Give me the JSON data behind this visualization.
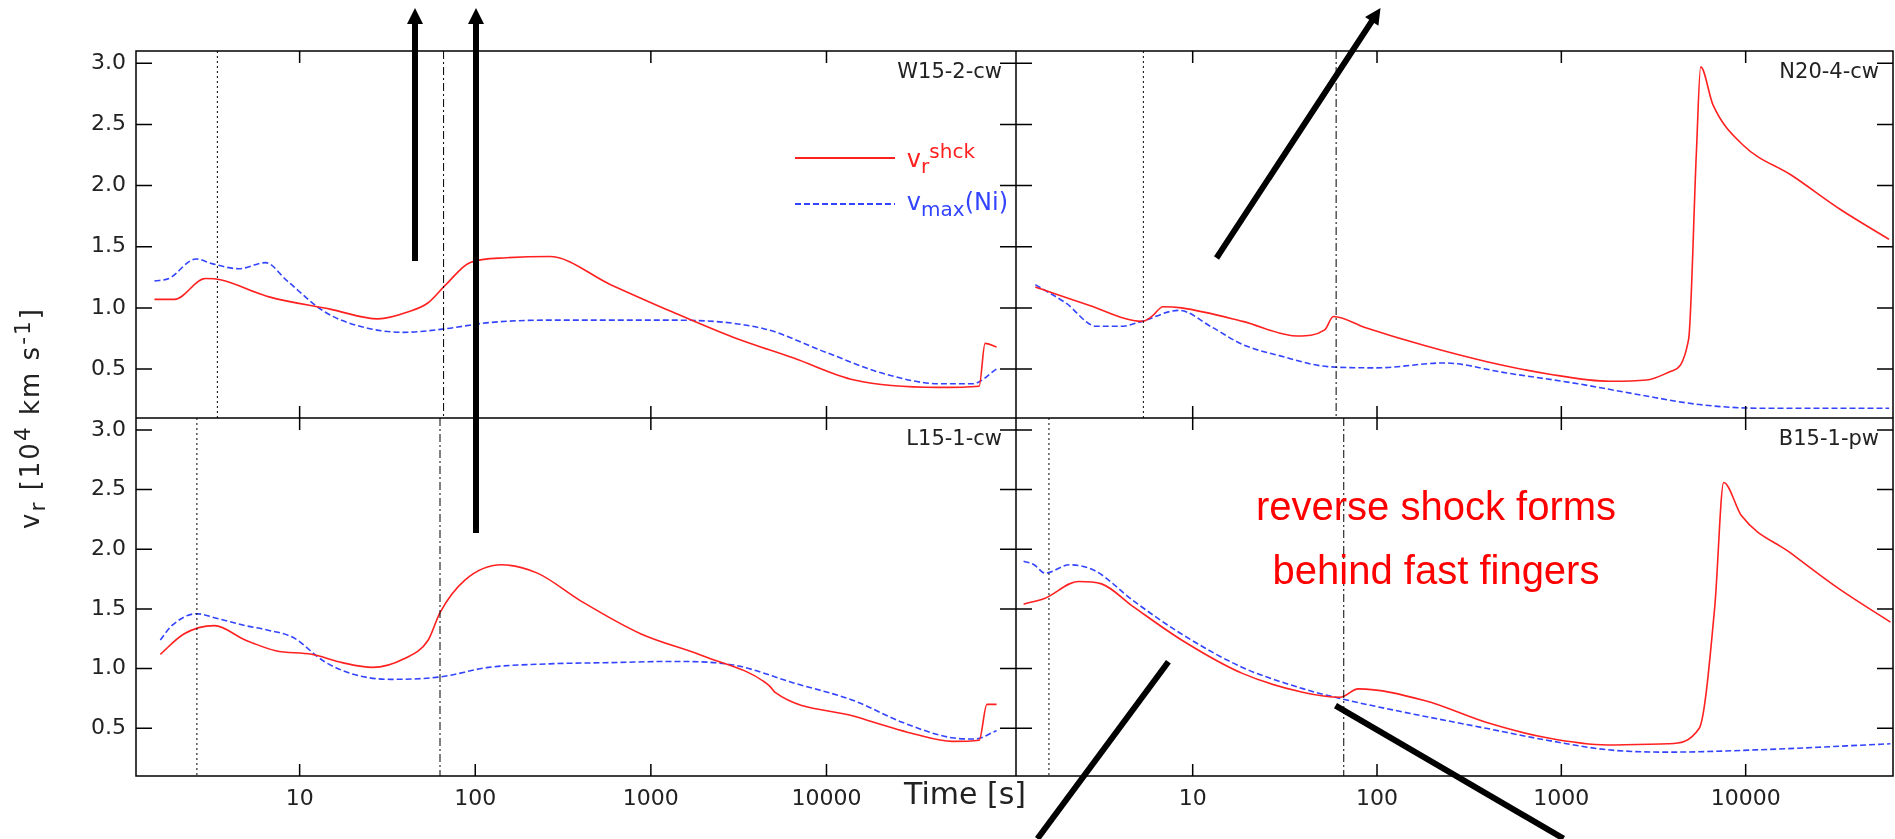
{
  "chart_data": [
    {
      "type": "line",
      "title": "W15-2-cw",
      "log": "x",
      "legend": "top right",
      "tick_labels": "y",
      "marker": "none",
      "xlim": [
        1.17,
        120000
      ],
      "xticks": [
        10,
        100,
        1000,
        10000
      ],
      "ylim": [
        0.1,
        3.1
      ],
      "yticks": [
        0.5,
        {
          "value": 1,
          "label": "1.0"
        },
        1.5,
        {
          "value": 2,
          "label": "2.0"
        },
        2.5,
        {
          "value": 3,
          "label": "3.0"
        }
      ],
      "ref_lines": [
        {
          "axis": "x",
          "value": 3.4,
          "line_style": "dotted"
        },
        {
          "axis": "x",
          "value": 66,
          "line_style": "dashdot"
        }
      ],
      "series": [
        {
          "name": "v$_{r}$$^{shck}$",
          "color": "#ff2020",
          "line_style": "solid",
          "x": [
            1.49,
            1.94,
            2.9,
            3.54,
            6.7,
            14.9,
            28,
            42,
            53.7,
            68,
            93,
            151,
            264,
            590,
            1310,
            2940,
            6500,
            14400,
            43000,
            74000,
            80000,
            93000
          ],
          "values": [
            1.07,
            1.07,
            1.24,
            1.23,
            1.09,
            0.99,
            0.91,
            0.97,
            1.04,
            1.19,
            1.37,
            1.41,
            1.42,
            1.19,
            0.97,
            0.76,
            0.59,
            0.41,
            0.35,
            0.36,
            0.71,
            0.68
          ]
        },
        {
          "name": "v$_{max}$(Ni)",
          "color": "#3344ff",
          "line_style": "dashed",
          "x": [
            1.49,
            1.8,
            2.57,
            3.2,
            4.5,
            6.4,
            8.5,
            13.8,
            22,
            39,
            68,
            120,
            264,
            590,
            1310,
            4400,
            9800,
            21500,
            44000,
            68000,
            93000
          ],
          "values": [
            1.22,
            1.24,
            1.4,
            1.36,
            1.32,
            1.37,
            1.22,
            0.97,
            0.85,
            0.8,
            0.83,
            0.88,
            0.9,
            0.9,
            0.9,
            0.83,
            0.64,
            0.46,
            0.38,
            0.38,
            0.5
          ]
        }
      ]
    },
    {
      "type": "line",
      "title": "N20-4-cw",
      "log": "x",
      "tick_labels": false,
      "marker": "none",
      "xlim": [
        1.1,
        63000
      ],
      "xticks": [
        10,
        100,
        1000,
        10000
      ],
      "ylim": [
        0.1,
        3.1
      ],
      "yticks": [
        0.5,
        1,
        1.5,
        2,
        2.5,
        3
      ],
      "ref_lines": [
        {
          "axis": "x",
          "value": 5.4,
          "line_style": "dotted"
        },
        {
          "axis": "x",
          "value": 60,
          "line_style": "dashdot"
        }
      ],
      "series": [
        {
          "color": "#ff2020",
          "line_style": "solid",
          "x": [
            1.4,
            2.76,
            5.3,
            6.0,
            6.9,
            8.7,
            18.7,
            37,
            52,
            58,
            86,
            183,
            395,
            850,
            1830,
            2900,
            3900,
            4900,
            5400,
            5700,
            6650,
            9700,
            17900,
            33000,
            60000
          ],
          "values": [
            1.17,
            1.02,
            0.89,
            0.93,
            1.01,
            1.0,
            0.89,
            0.77,
            0.82,
            0.93,
            0.84,
            0.69,
            0.56,
            0.46,
            0.4,
            0.41,
            0.48,
            0.74,
            2.26,
            2.97,
            2.66,
            2.33,
            2.08,
            1.8,
            1.56
          ]
        },
        {
          "color": "#3344ff",
          "line_style": "dashed",
          "x": [
            1.4,
            2.05,
            3.0,
            4.1,
            5.3,
            8.4,
            12.8,
            18.7,
            29.5,
            54,
            100,
            230,
            495,
            1230,
            2650,
            5600,
            12000,
            60000
          ],
          "values": [
            1.19,
            1.04,
            0.85,
            0.85,
            0.89,
            0.98,
            0.84,
            0.7,
            0.61,
            0.52,
            0.51,
            0.55,
            0.47,
            0.38,
            0.29,
            0.21,
            0.18,
            0.18
          ]
        }
      ]
    },
    {
      "type": "line",
      "title": "L15-1-cw",
      "ylabel": "v$_{r}$ [10$^{4}$ km s$^{-1}$]",
      "log": "x",
      "marker": "none",
      "xlim": [
        1.17,
        120000
      ],
      "xticks": [
        10,
        100,
        1000,
        10000
      ],
      "ylim": [
        0.1,
        3.1
      ],
      "yticks": [
        0.5,
        {
          "value": 1,
          "label": "1.0"
        },
        1.5,
        {
          "value": 2,
          "label": "2.0"
        },
        2.5,
        {
          "value": 3,
          "label": "3.0"
        }
      ],
      "ref_lines": [
        {
          "axis": "x",
          "value": 2.6,
          "line_style": "dotted"
        },
        {
          "axis": "x",
          "value": 63,
          "line_style": "dashdot"
        }
      ],
      "series": [
        {
          "color": "#ff2020",
          "line_style": "solid",
          "x": [
            1.61,
            2.19,
            3.27,
            4.9,
            7.3,
            11.7,
            17.5,
            26,
            39,
            54,
            63,
            87,
            141,
            226,
            396,
            880,
            1950,
            4700,
            5100,
            14400,
            32000,
            52000,
            74000,
            82000,
            93000
          ],
          "values": [
            1.12,
            1.29,
            1.36,
            1.24,
            1.15,
            1.12,
            1.05,
            1.01,
            1.08,
            1.24,
            1.47,
            1.74,
            1.87,
            1.8,
            1.57,
            1.29,
            1.11,
            0.86,
            0.8,
            0.6,
            0.45,
            0.39,
            0.4,
            0.7,
            0.7
          ]
        },
        {
          "color": "#3344ff",
          "line_style": "dashed",
          "x": [
            1.61,
            1.87,
            2.58,
            3.4,
            4.9,
            6.7,
            9.2,
            13.8,
            20.5,
            33,
            63,
            119,
            265,
            590,
            1310,
            2950,
            6500,
            14400,
            27000,
            52000,
            70000,
            93000
          ],
          "values": [
            1.24,
            1.36,
            1.46,
            1.42,
            1.36,
            1.32,
            1.26,
            1.06,
            0.95,
            0.91,
            0.93,
            1.01,
            1.04,
            1.05,
            1.06,
            1.03,
            0.88,
            0.73,
            0.55,
            0.42,
            0.41,
            0.48
          ]
        }
      ]
    },
    {
      "type": "line",
      "title": "B15-1-pw",
      "xlabel": "Time [s]",
      "log": "x",
      "tick_labels": "x",
      "marker": "none",
      "xlim": [
        1.1,
        63000
      ],
      "xticks": [
        10,
        100,
        1000,
        10000
      ],
      "ylim": [
        0.1,
        3.1
      ],
      "yticks": [
        0.5,
        1,
        1.5,
        2,
        2.5,
        3
      ],
      "annotations": [
        "reverse shock forms behind fast fingers"
      ],
      "ref_lines": [
        {
          "axis": "x",
          "value": 1.66,
          "line_style": "dotted"
        },
        {
          "axis": "x",
          "value": 66,
          "line_style": "dashdot"
        }
      ],
      "series": [
        {
          "color": "#ff2020",
          "line_style": "solid",
          "x": [
            1.21,
            1.58,
            2.4,
            3.2,
            4.75,
            8.7,
            18.6,
            40,
            63,
            79,
            183,
            390,
            835,
            1780,
            3800,
            5600,
            6800,
            7600,
            9500,
            17500,
            32000,
            61000
          ],
          "values": [
            1.54,
            1.59,
            1.73,
            1.71,
            1.52,
            1.24,
            0.96,
            0.8,
            0.76,
            0.83,
            0.73,
            0.55,
            0.42,
            0.36,
            0.37,
            0.5,
            1.52,
            2.56,
            2.28,
            1.97,
            1.67,
            1.39
          ]
        },
        {
          "color": "#3344ff",
          "line_style": "dashed",
          "x": [
            1.21,
            1.38,
            1.58,
            2.15,
            2.95,
            4.75,
            8.7,
            18.6,
            40,
            63,
            125,
            390,
            835,
            1780,
            3800,
            12000,
            61000
          ],
          "values": [
            1.9,
            1.87,
            1.8,
            1.87,
            1.82,
            1.57,
            1.29,
            1.01,
            0.83,
            0.75,
            0.65,
            0.5,
            0.4,
            0.32,
            0.3,
            0.32,
            0.37
          ]
        }
      ]
    }
  ]
}
